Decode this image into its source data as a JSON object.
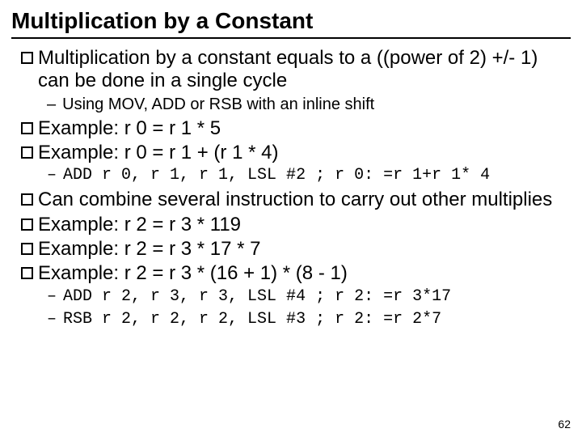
{
  "title": "Multiplication by a Constant",
  "lines": {
    "b1": "Multiplication by a constant equals to a ((power of 2) +/- 1) can be done in a single cycle",
    "s1": "Using MOV, ADD or RSB with an inline shift",
    "b2": "Example: r 0 = r 1 * 5",
    "b3": "Example: r 0 = r 1 + (r 1 * 4)",
    "c1": "ADD r 0, r 1, r 1, LSL #2   ; r 0: =r 1+r 1* 4",
    "b4": "Can combine several instruction to carry out other multiplies",
    "b5": "Example: r 2 = r 3 * 119",
    "b6": "Example: r 2 = r 3 * 17 * 7",
    "b7": "Example: r 2 = r 3 * (16 + 1) * (8 - 1)",
    "c2": "ADD r 2, r 3, r 3, LSL #4   ; r 2: =r 3*17",
    "c3": "RSB r 2, r 2, r 2, LSL #3   ; r 2: =r 2*7"
  },
  "pagenum": "62"
}
